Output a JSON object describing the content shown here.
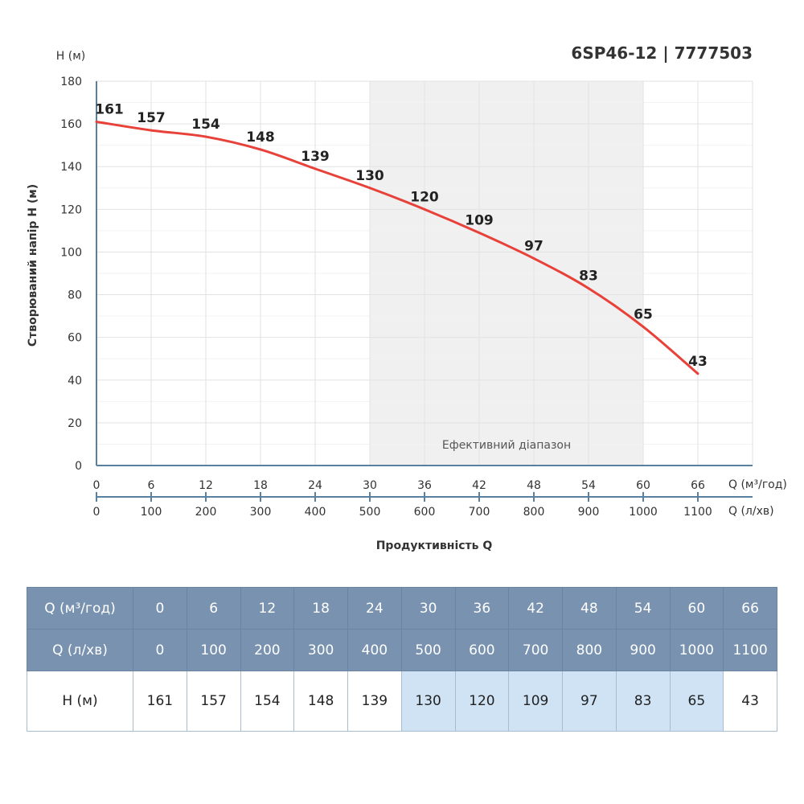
{
  "chart_data": {
    "type": "line",
    "title": "6SP46-12 | 7777503",
    "ylabel": "Створюваний напір H (м)",
    "ylabel_top": "H (м)",
    "xlabel": "Продуктивність Q",
    "x_unit_primary": "Q (м³/год)",
    "x_unit_secondary": "Q (л/хв)",
    "x": [
      0,
      6,
      12,
      18,
      24,
      30,
      36,
      42,
      48,
      54,
      60,
      66
    ],
    "x_secondary": [
      0,
      100,
      200,
      300,
      400,
      500,
      600,
      700,
      800,
      900,
      1000,
      1100
    ],
    "values": [
      161,
      157,
      154,
      148,
      139,
      130,
      120,
      109,
      97,
      83,
      65,
      43
    ],
    "xlim": [
      0,
      72
    ],
    "ylim": [
      0,
      180
    ],
    "yticks": [
      0,
      20,
      40,
      60,
      80,
      100,
      120,
      140,
      160,
      180
    ],
    "grid": true,
    "efficient_range": {
      "label": "Ефективний діапазон",
      "from": 30,
      "to": 60
    },
    "line_color": "#e8413a",
    "axis_color": "#5a80a0",
    "shade_color": "#f0f0f0"
  },
  "table": {
    "row_labels": [
      "Q (м³/год)",
      "Q (л/хв)",
      "H (м)"
    ],
    "header_color": "#7892b0",
    "highlight_color": "#cfe3f5"
  }
}
